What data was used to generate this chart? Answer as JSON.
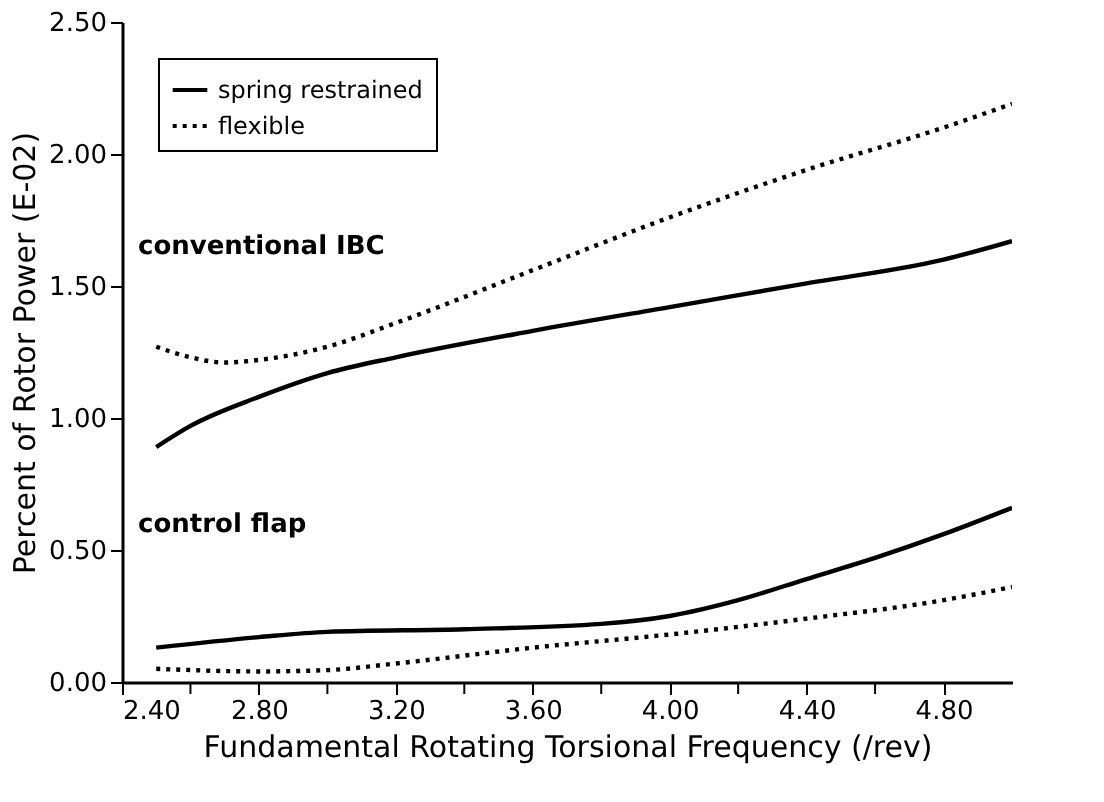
{
  "chart_data": {
    "type": "line",
    "xlabel": "Fundamental Rotating Torsional Frequency (/rev)",
    "ylabel": "Percent of Rotor Power (E-02)",
    "xlim": [
      2.4,
      5.0
    ],
    "ylim": [
      0,
      2.5
    ],
    "xticks": [
      {
        "value": 2.4,
        "label": "2.40"
      },
      {
        "value": 2.6,
        "label": null
      },
      {
        "value": 2.8,
        "label": "2.80"
      },
      {
        "value": 3.0,
        "label": null
      },
      {
        "value": 3.2,
        "label": "3.20"
      },
      {
        "value": 3.4,
        "label": null
      },
      {
        "value": 3.6,
        "label": "3.60"
      },
      {
        "value": 3.8,
        "label": null
      },
      {
        "value": 4.0,
        "label": "4.00"
      },
      {
        "value": 4.2,
        "label": null
      },
      {
        "value": 4.4,
        "label": "4.40"
      },
      {
        "value": 4.6,
        "label": null
      },
      {
        "value": 4.8,
        "label": "4.80"
      }
    ],
    "yticks": [
      {
        "value": 0,
        "label": "0.00"
      },
      {
        "value": 0.5,
        "label": "0.50"
      },
      {
        "value": 1.0,
        "label": "1.00"
      },
      {
        "value": 1.5,
        "label": "1.50"
      },
      {
        "value": 2.0,
        "label": "2.00"
      },
      {
        "value": 2.5,
        "label": "2.50"
      }
    ],
    "grid": false,
    "legend": "top left",
    "marker": "none",
    "annotations": [
      "conventional IBC",
      "control flap"
    ],
    "series": [
      {
        "name": "spring restrained",
        "color": "#000000",
        "line_style": "solid",
        "x": [
          2.5,
          2.6,
          2.8,
          3.0,
          3.2,
          3.6,
          4.0,
          4.4,
          4.8,
          5.0
        ],
        "values": [
          0.89,
          0.97,
          1.08,
          1.17,
          1.23,
          1.33,
          1.42,
          1.51,
          1.6,
          1.67
        ]
      },
      {
        "name": "flexible",
        "color": "#000000",
        "line_style": "dotted",
        "x": [
          2.5,
          2.6,
          2.7,
          2.8,
          3.0,
          3.2,
          3.6,
          4.0,
          4.4,
          4.8,
          5.0
        ],
        "values": [
          1.27,
          1.23,
          1.21,
          1.22,
          1.27,
          1.36,
          1.56,
          1.76,
          1.94,
          2.1,
          2.19
        ]
      },
      {
        "color": "#000000",
        "line_style": "solid",
        "x": [
          2.5,
          2.8,
          3.0,
          3.4,
          3.8,
          4.0,
          4.2,
          4.4,
          4.6,
          4.8,
          5.0
        ],
        "values": [
          0.13,
          0.17,
          0.19,
          0.2,
          0.22,
          0.25,
          0.31,
          0.39,
          0.47,
          0.56,
          0.66
        ]
      },
      {
        "color": "#000000",
        "line_style": "dotted",
        "x": [
          2.5,
          2.8,
          3.0,
          3.2,
          3.6,
          4.0,
          4.4,
          4.8,
          5.0
        ],
        "values": [
          0.05,
          0.04,
          0.045,
          0.07,
          0.13,
          0.18,
          0.24,
          0.31,
          0.36
        ]
      }
    ]
  }
}
